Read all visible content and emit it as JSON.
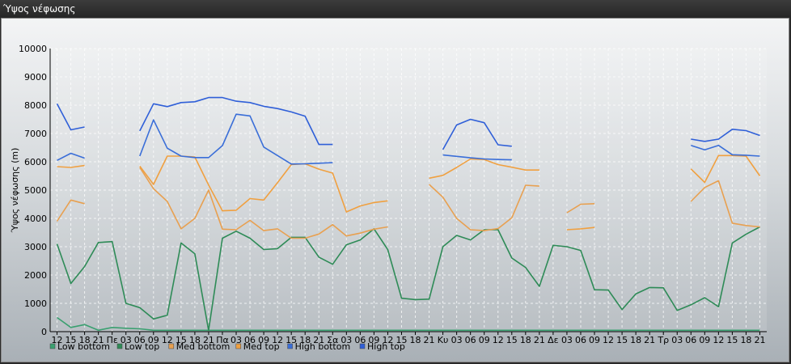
{
  "window": {
    "title": "Ύψος νέφωσης"
  },
  "chart_data": {
    "type": "line",
    "title": "Ύψος νέφωσης",
    "ylabel": "Ύψος νέφωσης (m)",
    "xlabel": "",
    "ylim": [
      0,
      10000
    ],
    "yticks": [
      0,
      1000,
      2000,
      3000,
      4000,
      5000,
      6000,
      7000,
      8000,
      9000,
      10000
    ],
    "grid": true,
    "legend_position": "bottom-left",
    "categories": [
      "12",
      "15",
      "18",
      "21",
      "Πε",
      "03",
      "06",
      "09",
      "12",
      "15",
      "18",
      "21",
      "Πα",
      "03",
      "06",
      "09",
      "12",
      "15",
      "18",
      "21",
      "Σα",
      "03",
      "06",
      "09",
      "12",
      "15",
      "18",
      "21",
      "Κυ",
      "03",
      "06",
      "09",
      "12",
      "15",
      "18",
      "21",
      "Δε",
      "03",
      "06",
      "09",
      "12",
      "15",
      "18",
      "21",
      "Τρ",
      "03",
      "06",
      "09",
      "12",
      "15",
      "18",
      "21"
    ],
    "series": [
      {
        "name": "Low bottom",
        "color": "#3aa070",
        "values": [
          500,
          150,
          250,
          50,
          150,
          120,
          100,
          50,
          50,
          50,
          50,
          50,
          50,
          50,
          50,
          50,
          50,
          50,
          50,
          50,
          50,
          50,
          50,
          50,
          50,
          50,
          50,
          50,
          50,
          50,
          50,
          50,
          50,
          50,
          50,
          50,
          50,
          50,
          50,
          50,
          50,
          50,
          50,
          50,
          50,
          50,
          50,
          50,
          50,
          50,
          50,
          50
        ]
      },
      {
        "name": "Low top",
        "color": "#2e8b57",
        "values": [
          3100,
          1700,
          2300,
          3150,
          3180,
          1000,
          850,
          450,
          580,
          3130,
          2750,
          50,
          3300,
          3550,
          3300,
          2900,
          2930,
          3330,
          3330,
          2630,
          2380,
          3070,
          3240,
          3630,
          2900,
          1180,
          1130,
          1150,
          3000,
          3400,
          3240,
          3600,
          3600,
          2600,
          2270,
          1600,
          3050,
          3000,
          2870,
          1480,
          1470,
          780,
          1330,
          1560,
          1550,
          750,
          950,
          1200,
          880,
          3130,
          3440,
          3700
        ]
      },
      {
        "name": "Med bottom",
        "color": "#e8a050",
        "values": [
          3900,
          4650,
          4520,
          null,
          null,
          null,
          5800,
          5050,
          4600,
          3630,
          4000,
          5000,
          3620,
          3600,
          3930,
          3570,
          3630,
          3300,
          3300,
          3450,
          3780,
          3380,
          3480,
          3620,
          3700,
          null,
          null,
          5200,
          4750,
          4000,
          3600,
          3570,
          3640,
          4020,
          5170,
          5140,
          null,
          4200,
          4500,
          4520,
          null,
          null,
          null,
          null,
          null,
          null,
          4600,
          5090,
          5330,
          3830,
          3750,
          3700
        ]
      },
      {
        "name": "Med top",
        "color": "#f0a040",
        "values": [
          5830,
          5800,
          5870,
          null,
          null,
          null,
          5850,
          5200,
          6200,
          6200,
          6170,
          5180,
          4270,
          4290,
          4700,
          4650,
          5260,
          5900,
          5930,
          5740,
          5600,
          4230,
          4440,
          4560,
          4620,
          null,
          null,
          5420,
          5520,
          5800,
          6100,
          6080,
          5900,
          5810,
          5710,
          5710,
          null,
          3600,
          3630,
          3680,
          null,
          null,
          null,
          null,
          null,
          null,
          5750,
          5270,
          6220,
          6220,
          6200,
          5500
        ]
      },
      {
        "name": "High bottom",
        "color": "#3a6ed8",
        "values": [
          6050,
          6300,
          6130,
          null,
          null,
          null,
          6200,
          7480,
          6480,
          6200,
          6150,
          6150,
          6570,
          7680,
          7620,
          6520,
          6220,
          5920,
          5930,
          5950,
          5970,
          null,
          null,
          null,
          null,
          null,
          null,
          null,
          6240,
          6190,
          6140,
          6100,
          6080,
          6070,
          null,
          null,
          null,
          null,
          null,
          null,
          null,
          null,
          null,
          null,
          null,
          null,
          6580,
          6420,
          6580,
          6250,
          6230,
          6200
        ]
      },
      {
        "name": "High top",
        "color": "#2f5fd8",
        "values": [
          8050,
          7130,
          7230,
          null,
          null,
          null,
          7090,
          8050,
          7950,
          8090,
          8120,
          8270,
          8270,
          8140,
          8090,
          7960,
          7880,
          7760,
          7610,
          6610,
          6610,
          null,
          null,
          null,
          null,
          null,
          null,
          null,
          6430,
          7300,
          7500,
          7380,
          6600,
          6550,
          null,
          null,
          null,
          null,
          null,
          null,
          null,
          null,
          null,
          null,
          null,
          null,
          6800,
          6720,
          6800,
          7150,
          7100,
          6930
        ]
      }
    ]
  }
}
